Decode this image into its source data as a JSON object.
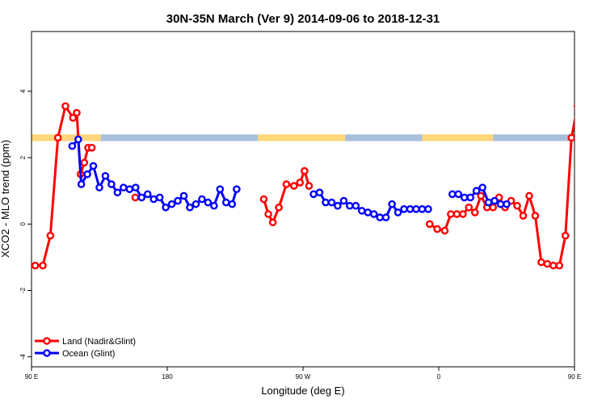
{
  "chart_data": {
    "type": "line",
    "title": "30N-35N March (Ver 9)   2014-09-06 to 2018-12-31",
    "xlabel": "Longitude (deg E)",
    "ylabel": "XCO2 - MLO trend (ppm)",
    "xlim": [
      90,
      450
    ],
    "ylim": [
      -4.3,
      5.8
    ],
    "x_ticks": [
      {
        "value": 90,
        "label": "90 E"
      },
      {
        "value": 180,
        "label": "180"
      },
      {
        "value": 270,
        "label": "90 W"
      },
      {
        "value": 360,
        "label": "0"
      },
      {
        "value": 450,
        "label": "90 E"
      },
      {
        "value": 540,
        "label": "180"
      }
    ],
    "y_ticks": [
      {
        "value": -4,
        "label": "-4"
      },
      {
        "value": -2,
        "label": "-2"
      },
      {
        "value": 0,
        "label": "0"
      },
      {
        "value": 2,
        "label": "2"
      },
      {
        "value": 4,
        "label": "4"
      }
    ],
    "grid": false,
    "legend_position": "bottom-left",
    "land_ocean_band": {
      "y_min": 2.5,
      "y_max": 2.7,
      "land_color": "#FFD77A",
      "ocean_color": "#A8BEDD",
      "land_ranges": [
        [
          90,
          136
        ],
        [
          240,
          298
        ],
        [
          349,
          396
        ],
        [
          450,
          496
        ]
      ]
    },
    "series": [
      {
        "name": "Land (Nadir&Glint)",
        "color": "#FF0000",
        "segments": [
          {
            "x": [
              92.5,
              97.5,
              102.5,
              107.5,
              112.5,
              117.5,
              120,
              122.5,
              125,
              127.5,
              130
            ],
            "y": [
              -1.25,
              -1.25,
              -0.35,
              2.6,
              3.55,
              3.2,
              3.35,
              1.5,
              1.85,
              2.3,
              2.3
            ]
          },
          {
            "x": [
              158.8
            ],
            "y": [
              0.8
            ]
          },
          {
            "x": [
              244,
              247,
              250,
              254,
              259,
              264,
              268,
              271,
              274
            ],
            "y": [
              0.75,
              0.3,
              0.05,
              0.5,
              1.2,
              1.15,
              1.25,
              1.6,
              1.15
            ]
          },
          {
            "x": [
              354,
              359,
              364,
              368,
              372,
              376,
              380,
              384,
              388,
              392,
              396,
              400,
              404,
              408,
              412,
              416,
              420,
              424,
              428,
              432,
              436,
              440,
              444,
              448,
              452,
              457,
              462,
              465,
              467,
              470,
              472
            ],
            "y": [
              0.0,
              -0.15,
              -0.2,
              0.3,
              0.3,
              0.3,
              0.5,
              0.35,
              0.85,
              0.5,
              0.5,
              0.8,
              0.5,
              0.7,
              0.55,
              0.25,
              0.85,
              0.25,
              -1.15,
              -1.2,
              -1.25,
              -1.25,
              -0.35,
              2.6,
              3.55,
              3.2,
              3.35,
              1.5,
              1.85,
              2.3,
              2.3
            ]
          }
        ]
      },
      {
        "name": "Ocean (Glint)",
        "color": "#0000FF",
        "segments": [
          {
            "x": [
              117,
              121,
              123,
              127,
              131,
              135,
              139,
              143,
              147,
              151,
              155,
              159,
              163,
              167,
              171,
              175,
              179,
              183,
              187,
              191,
              195,
              199,
              203,
              207,
              211,
              215,
              219,
              223,
              226
            ],
            "y": [
              2.35,
              2.55,
              1.2,
              1.5,
              1.75,
              1.1,
              1.45,
              1.2,
              0.95,
              1.1,
              1.05,
              1.1,
              0.8,
              0.9,
              0.75,
              0.8,
              0.5,
              0.6,
              0.7,
              0.85,
              0.5,
              0.6,
              0.75,
              0.65,
              0.55,
              1.05,
              0.65,
              0.6,
              1.05
            ]
          },
          {
            "x": [
              277,
              281,
              285,
              289,
              293,
              297,
              301,
              305,
              309,
              313,
              317,
              321,
              325,
              329,
              333,
              337,
              341,
              345,
              349,
              353
            ],
            "y": [
              0.9,
              0.95,
              0.65,
              0.65,
              0.55,
              0.7,
              0.55,
              0.55,
              0.4,
              0.35,
              0.3,
              0.2,
              0.2,
              0.6,
              0.35,
              0.45,
              0.45,
              0.45,
              0.45,
              0.45
            ]
          },
          {
            "x": [
              369,
              373,
              377,
              381,
              385,
              389,
              393,
              397,
              401,
              405
            ],
            "y": [
              0.9,
              0.9,
              0.8,
              0.8,
              1.0,
              1.1,
              0.65,
              0.7,
              0.6,
              0.6
            ]
          },
          {
            "x": [
              462,
              466,
              469,
              473,
              477,
              481,
              485,
              489,
              493,
              497,
              501,
              505,
              509,
              513,
              517,
              521,
              525,
              529,
              533,
              537
            ],
            "y": [
              2.35,
              2.55,
              1.2,
              1.5,
              1.75,
              1.1,
              1.45,
              1.2,
              0.95,
              1.1,
              1.05,
              1.1,
              0.8,
              0.9,
              0.75,
              0.8,
              0.5,
              0.6,
              0.7,
              0.85
            ]
          }
        ]
      }
    ]
  }
}
